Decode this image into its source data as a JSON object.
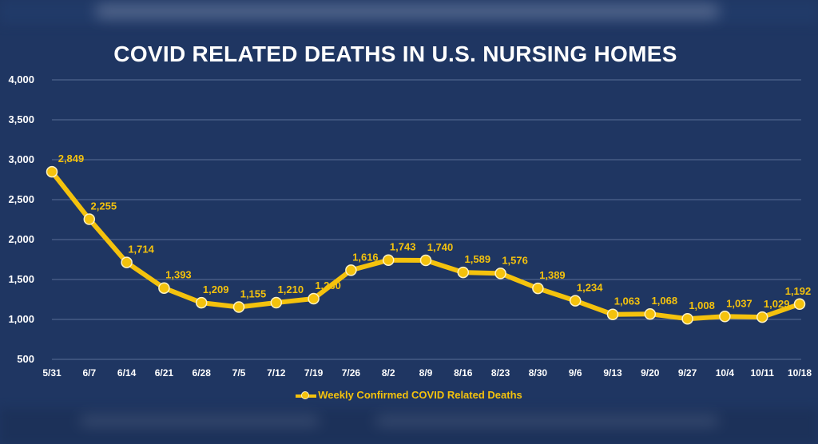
{
  "chart_data": {
    "type": "line",
    "title": "COVID RELATED DEATHS IN U.S. NURSING HOMES",
    "categories": [
      "5/31",
      "6/7",
      "6/14",
      "6/21",
      "6/28",
      "7/5",
      "7/12",
      "7/19",
      "7/26",
      "8/2",
      "8/9",
      "8/16",
      "8/23",
      "8/30",
      "9/6",
      "9/13",
      "9/20",
      "9/27",
      "10/4",
      "10/11",
      "10/18"
    ],
    "series": [
      {
        "name": "Weekly Confirmed COVID Related Deaths",
        "values": [
          2849,
          2255,
          1714,
          1393,
          1209,
          1155,
          1210,
          1260,
          1616,
          1743,
          1740,
          1589,
          1576,
          1389,
          1234,
          1063,
          1068,
          1008,
          1037,
          1029,
          1192
        ],
        "labels": [
          "2,849",
          "2,255",
          "1,714",
          "1,393",
          "1,209",
          "1,155",
          "1,210",
          "1,260",
          "1,616",
          "1,743",
          "1,740",
          "1,589",
          "1,576",
          "1,389",
          "1,234",
          "1,063",
          "1,068",
          "1,008",
          "1,037",
          "1,029",
          "1,192"
        ],
        "color": "#f4c20d"
      }
    ],
    "ylim": [
      500,
      4000
    ],
    "yticks": [
      500,
      1000,
      1500,
      2000,
      2500,
      3000,
      3500,
      4000
    ],
    "ytick_labels": [
      "500",
      "1,000",
      "1,500",
      "2,000",
      "2,500",
      "3,000",
      "3,500",
      "4,000"
    ],
    "grid": true,
    "legend": "bottom",
    "colors": {
      "background": "#1f3662",
      "line": "#f4c20d",
      "grid": "#5a6f96",
      "text": "#ffffff"
    }
  }
}
